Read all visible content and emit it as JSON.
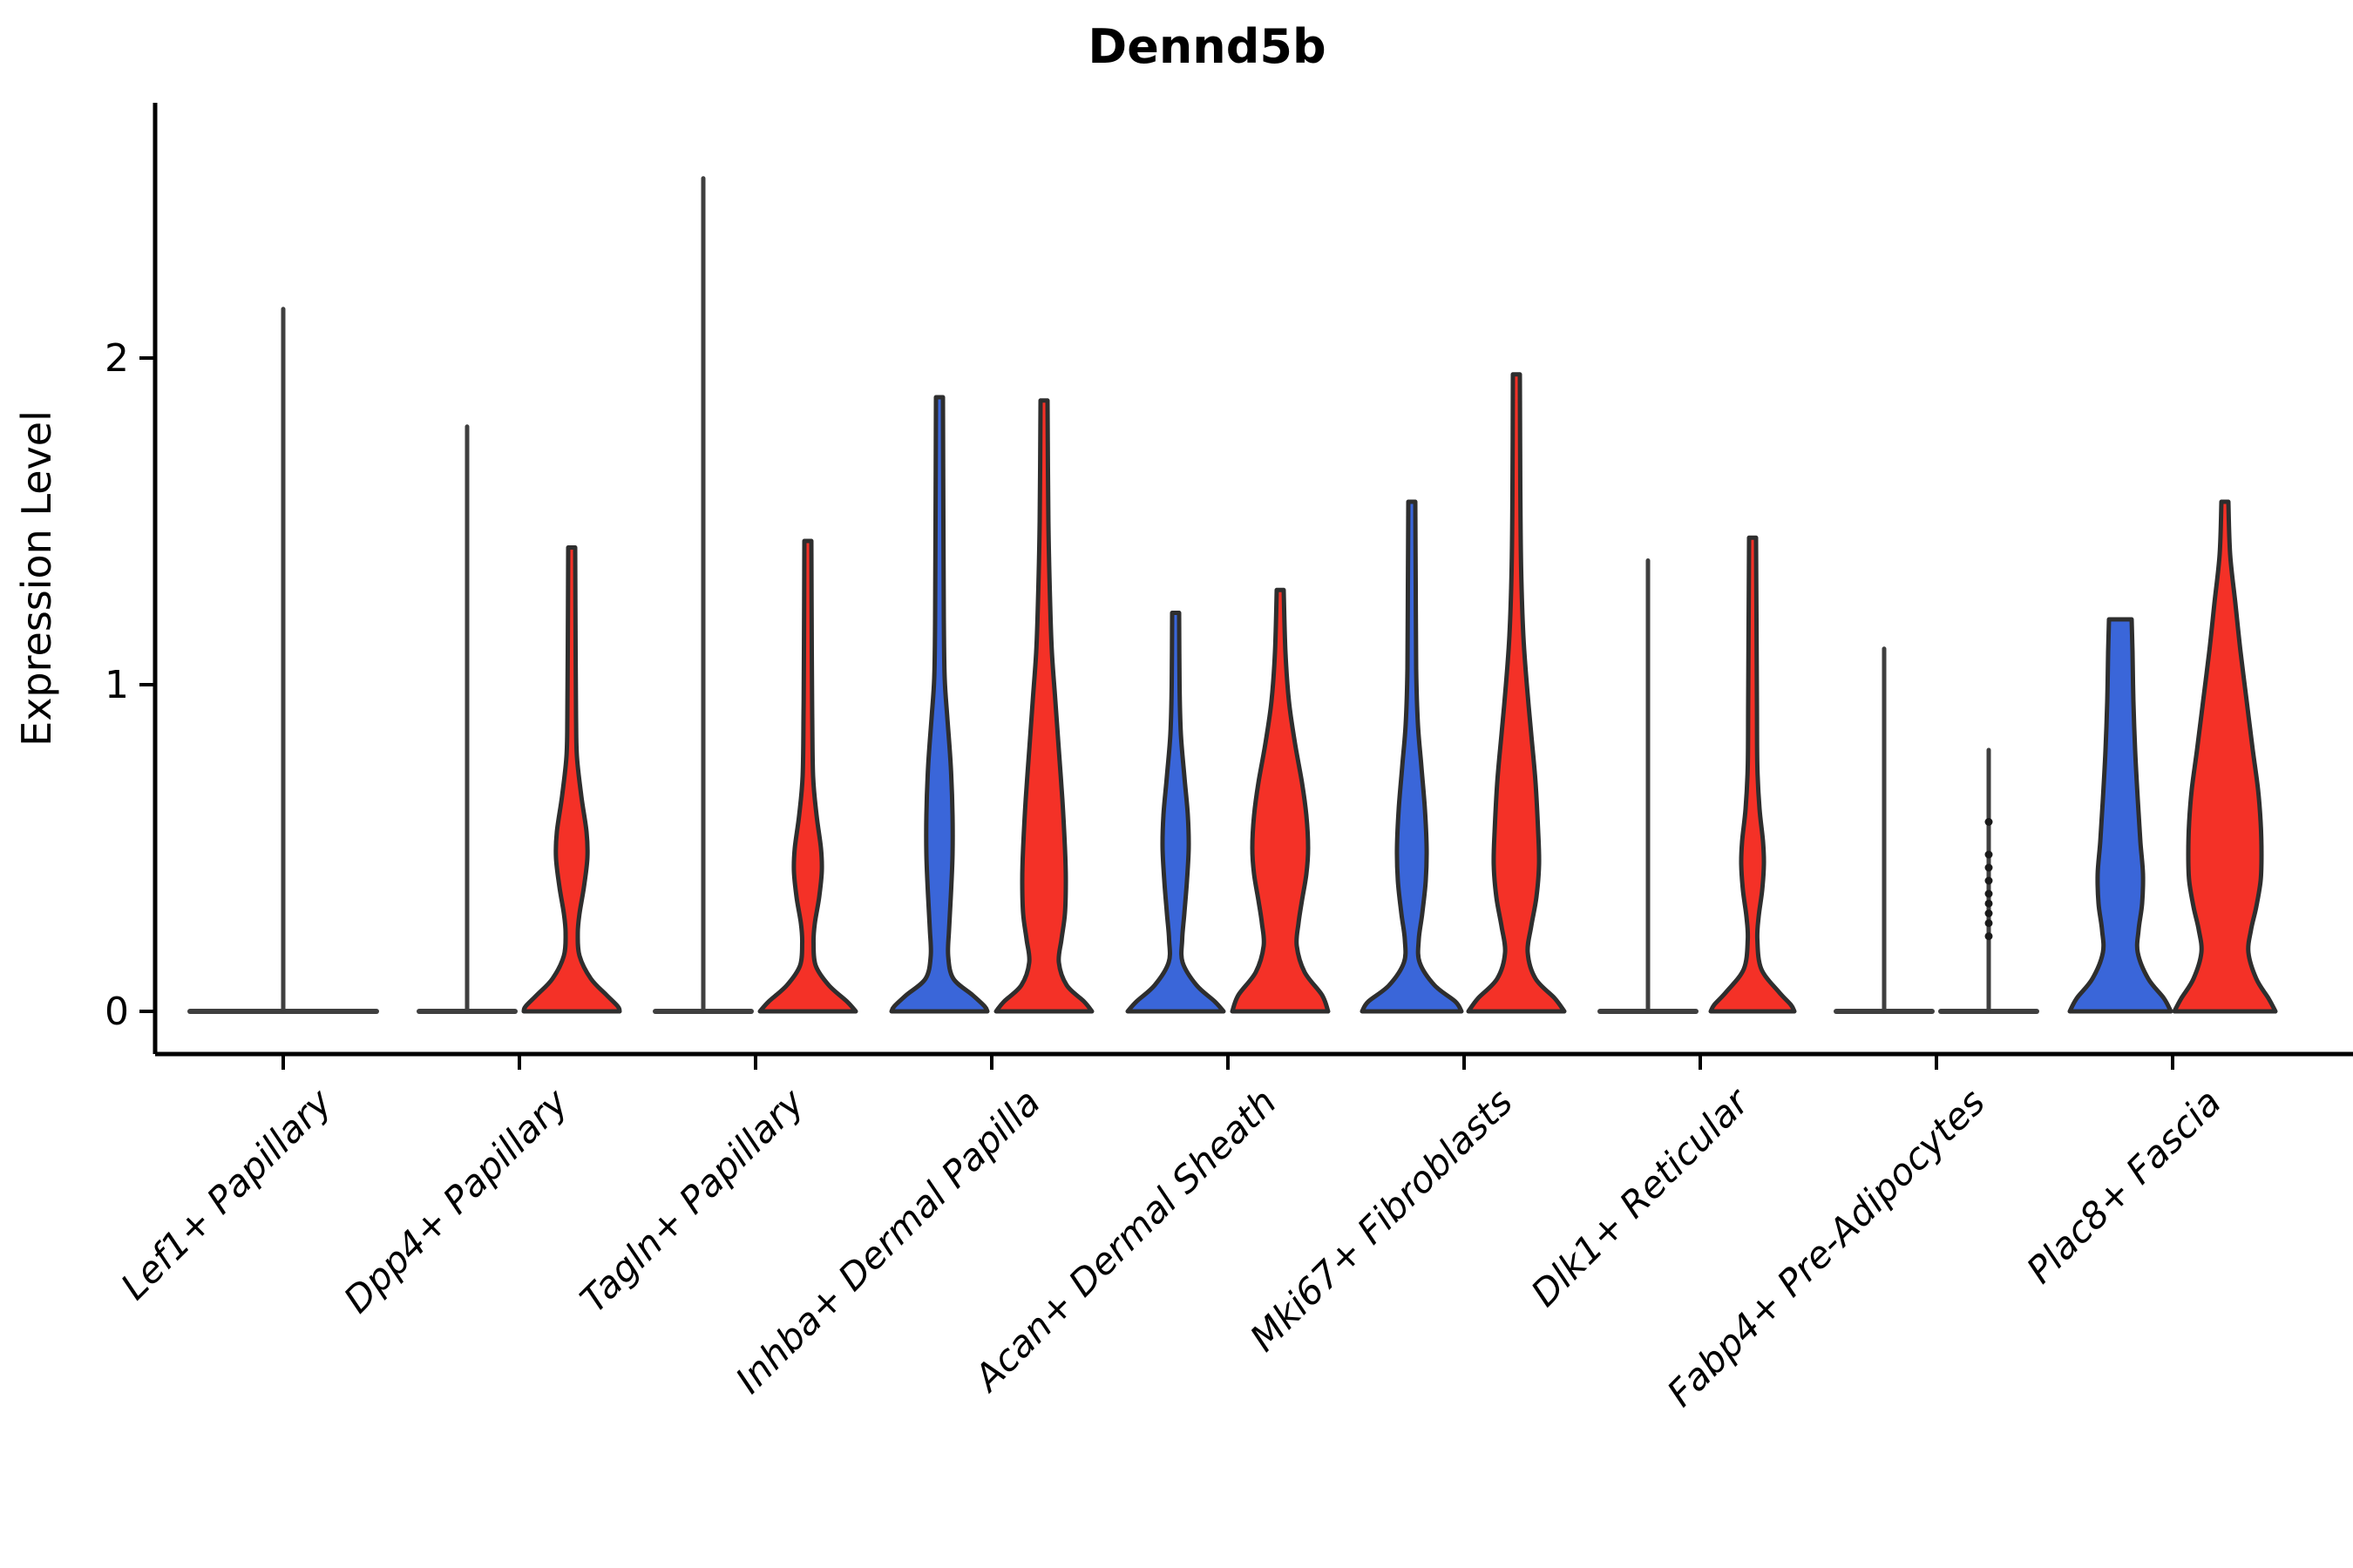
{
  "chart_data": {
    "type": "violin",
    "title": "Dennd5b",
    "ylabel": "Expression Level",
    "yticks": [
      "0",
      "1",
      "2"
    ],
    "ylim": [
      -0.13,
      2.78
    ],
    "grid": false,
    "legend": "none",
    "categories": [
      "Lef1+ Papillary",
      "Dpp4+ Papillary",
      "Tagln+ Papillary",
      "Inhba+ Dermal Papilla",
      "Acan+ Dermal Sheath",
      "Mki67+ Fibroblasts",
      "Dlk1+ Reticular",
      "Fabp4+ Pre-Adipocytes",
      "Plac8+ Fascia"
    ],
    "colors": {
      "blue": "#3A66D9",
      "red": "#F43127",
      "outline": "#2E2E2E",
      "flatline": "#3F3F3F",
      "axis": "#000000"
    },
    "groups": [
      {
        "category": "Lef1+ Papillary",
        "violins": [
          {
            "side": "blue",
            "kind": "flat_spike",
            "max": 2.15,
            "flat_half_width": 107,
            "offset": 0
          }
        ]
      },
      {
        "category": "Dpp4+ Papillary",
        "violins": [
          {
            "side": "blue",
            "kind": "flat_spike",
            "max": 1.79,
            "flat_half_width": 55,
            "offset": -60
          },
          {
            "side": "red",
            "kind": "violin",
            "max": 1.42,
            "offset": 60,
            "profile": [
              [
                1.42,
                4
              ],
              [
                1.1,
                4.5
              ],
              [
                0.9,
                5
              ],
              [
                0.78,
                6
              ],
              [
                0.66,
                11
              ],
              [
                0.55,
                17
              ],
              [
                0.47,
                18
              ],
              [
                0.38,
                14
              ],
              [
                0.3,
                9
              ],
              [
                0.24,
                7
              ],
              [
                0.17,
                9
              ],
              [
                0.1,
                22
              ],
              [
                0.05,
                40
              ],
              [
                0.015,
                53
              ],
              [
                0,
                55
              ]
            ]
          }
        ]
      },
      {
        "category": "Tagln+ Papillary",
        "violins": [
          {
            "side": "blue",
            "kind": "flat_spike",
            "max": 2.55,
            "flat_half_width": 55,
            "offset": -60
          },
          {
            "side": "red",
            "kind": "violin",
            "max": 1.44,
            "offset": 60,
            "profile": [
              [
                1.44,
                4
              ],
              [
                1.1,
                4.5
              ],
              [
                0.9,
                5
              ],
              [
                0.72,
                6
              ],
              [
                0.6,
                10
              ],
              [
                0.5,
                15
              ],
              [
                0.43,
                16
              ],
              [
                0.35,
                13
              ],
              [
                0.27,
                8
              ],
              [
                0.21,
                6.5
              ],
              [
                0.14,
                9
              ],
              [
                0.08,
                24
              ],
              [
                0.03,
                45
              ],
              [
                0,
                55
              ]
            ]
          }
        ]
      },
      {
        "category": "Inhba+ Dermal Papilla",
        "violins": [
          {
            "side": "blue",
            "kind": "violin",
            "max": 1.88,
            "offset": -60,
            "profile": [
              [
                1.88,
                4
              ],
              [
                1.5,
                4.5
              ],
              [
                1.2,
                5
              ],
              [
                1.02,
                6
              ],
              [
                0.9,
                9
              ],
              [
                0.75,
                13
              ],
              [
                0.6,
                15
              ],
              [
                0.48,
                15
              ],
              [
                0.35,
                13
              ],
              [
                0.25,
                11
              ],
              [
                0.17,
                10
              ],
              [
                0.1,
                16
              ],
              [
                0.05,
                38
              ],
              [
                0.015,
                52
              ],
              [
                0,
                55
              ]
            ]
          },
          {
            "side": "red",
            "kind": "violin",
            "max": 1.87,
            "offset": 60,
            "profile": [
              [
                1.87,
                4
              ],
              [
                1.5,
                5
              ],
              [
                1.25,
                7
              ],
              [
                1.1,
                9
              ],
              [
                0.95,
                13
              ],
              [
                0.8,
                17
              ],
              [
                0.65,
                21
              ],
              [
                0.5,
                24
              ],
              [
                0.4,
                25
              ],
              [
                0.3,
                24
              ],
              [
                0.22,
                20
              ],
              [
                0.15,
                17
              ],
              [
                0.08,
                26
              ],
              [
                0.03,
                46
              ],
              [
                0,
                55
              ]
            ]
          }
        ]
      },
      {
        "category": "Acan+ Dermal Sheath",
        "violins": [
          {
            "side": "blue",
            "kind": "violin",
            "max": 1.22,
            "offset": -60,
            "profile": [
              [
                1.22,
                4
              ],
              [
                1.0,
                4.5
              ],
              [
                0.85,
                6
              ],
              [
                0.72,
                10
              ],
              [
                0.6,
                14
              ],
              [
                0.5,
                15
              ],
              [
                0.4,
                13
              ],
              [
                0.3,
                10
              ],
              [
                0.22,
                7.5
              ],
              [
                0.15,
                8
              ],
              [
                0.08,
                24
              ],
              [
                0.03,
                45
              ],
              [
                0,
                55
              ]
            ]
          },
          {
            "side": "red",
            "kind": "violin",
            "max": 1.29,
            "offset": 60,
            "profile": [
              [
                1.29,
                4
              ],
              [
                1.1,
                6
              ],
              [
                0.95,
                10
              ],
              [
                0.82,
                17
              ],
              [
                0.7,
                25
              ],
              [
                0.6,
                30
              ],
              [
                0.5,
                32
              ],
              [
                0.42,
                30
              ],
              [
                0.34,
                25
              ],
              [
                0.27,
                21
              ],
              [
                0.2,
                19
              ],
              [
                0.12,
                28
              ],
              [
                0.05,
                48
              ],
              [
                0,
                55
              ]
            ]
          }
        ]
      },
      {
        "category": "Mki67+ Fibroblasts",
        "violins": [
          {
            "side": "blue",
            "kind": "violin",
            "max": 1.56,
            "offset": -60,
            "profile": [
              [
                1.56,
                4
              ],
              [
                1.3,
                4.5
              ],
              [
                1.05,
                5
              ],
              [
                0.88,
                7
              ],
              [
                0.75,
                11
              ],
              [
                0.62,
                15
              ],
              [
                0.5,
                17
              ],
              [
                0.4,
                16
              ],
              [
                0.3,
                12
              ],
              [
                0.22,
                8
              ],
              [
                0.15,
                9
              ],
              [
                0.08,
                26
              ],
              [
                0.03,
                50
              ],
              [
                0,
                57
              ]
            ]
          },
          {
            "side": "red",
            "kind": "violin",
            "max": 1.95,
            "offset": 60,
            "profile": [
              [
                1.95,
                4
              ],
              [
                1.6,
                4.5
              ],
              [
                1.35,
                5.5
              ],
              [
                1.15,
                8
              ],
              [
                1.0,
                12
              ],
              [
                0.85,
                17
              ],
              [
                0.7,
                22
              ],
              [
                0.55,
                25
              ],
              [
                0.45,
                26
              ],
              [
                0.35,
                23
              ],
              [
                0.26,
                17
              ],
              [
                0.18,
                13
              ],
              [
                0.1,
                22
              ],
              [
                0.04,
                44
              ],
              [
                0,
                55
              ]
            ]
          }
        ]
      },
      {
        "category": "Dlk1+ Reticular",
        "violins": [
          {
            "side": "blue",
            "kind": "flat_spike",
            "max": 1.38,
            "flat_half_width": 55,
            "offset": -60
          },
          {
            "side": "red",
            "kind": "violin",
            "max": 1.45,
            "offset": 60,
            "profile": [
              [
                1.45,
                4
              ],
              [
                1.2,
                4.5
              ],
              [
                0.95,
                5
              ],
              [
                0.75,
                5.5
              ],
              [
                0.62,
                8
              ],
              [
                0.52,
                12
              ],
              [
                0.45,
                13
              ],
              [
                0.37,
                11
              ],
              [
                0.29,
                7
              ],
              [
                0.22,
                5.5
              ],
              [
                0.13,
                10
              ],
              [
                0.06,
                30
              ],
              [
                0.02,
                44
              ],
              [
                0,
                48
              ]
            ]
          }
        ]
      },
      {
        "category": "Fabp4+ Pre-Adipocytes",
        "violins": [
          {
            "side": "blue",
            "kind": "flat_spike",
            "max": 1.11,
            "flat_half_width": 55,
            "offset": -60
          },
          {
            "side": "red",
            "kind": "line_dots",
            "max": 0.8,
            "flat_half_width": 55,
            "offset": 60,
            "dots": [
              0.23,
              0.27,
              0.3,
              0.33,
              0.36,
              0.4,
              0.44,
              0.48,
              0.58
            ]
          }
        ]
      },
      {
        "category": "Plac8+ Fascia",
        "violins": [
          {
            "side": "blue",
            "kind": "violin",
            "max": 1.2,
            "offset": -60,
            "profile": [
              [
                1.2,
                13
              ],
              [
                1.1,
                14
              ],
              [
                0.95,
                15
              ],
              [
                0.8,
                17
              ],
              [
                0.65,
                20
              ],
              [
                0.52,
                23
              ],
              [
                0.42,
                26
              ],
              [
                0.33,
                25
              ],
              [
                0.25,
                21
              ],
              [
                0.18,
                20
              ],
              [
                0.1,
                32
              ],
              [
                0.04,
                50
              ],
              [
                0,
                58
              ]
            ]
          },
          {
            "side": "red",
            "kind": "violin",
            "max": 1.56,
            "offset": 60,
            "profile": [
              [
                1.56,
                4
              ],
              [
                1.4,
                6
              ],
              [
                1.25,
                12
              ],
              [
                1.1,
                18
              ],
              [
                0.95,
                25
              ],
              [
                0.8,
                32
              ],
              [
                0.68,
                38
              ],
              [
                0.58,
                41
              ],
              [
                0.48,
                42
              ],
              [
                0.4,
                41
              ],
              [
                0.32,
                36
              ],
              [
                0.25,
                30
              ],
              [
                0.18,
                27
              ],
              [
                0.1,
                36
              ],
              [
                0.04,
                50
              ],
              [
                0,
                58
              ]
            ]
          }
        ]
      }
    ]
  }
}
